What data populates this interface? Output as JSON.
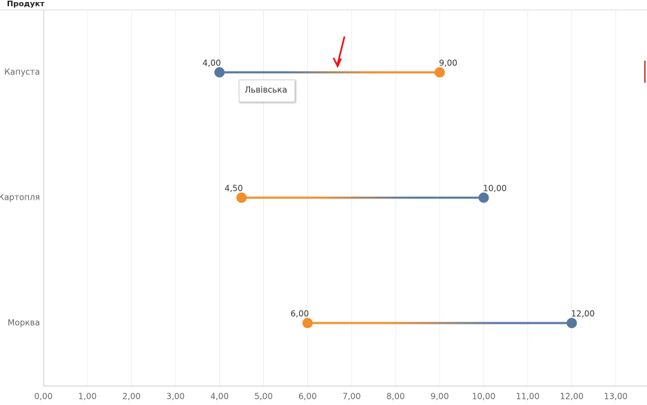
{
  "chart_data": {
    "type": "dumbbell",
    "header": "Продукт",
    "categories": [
      "Капуста",
      "Картопля",
      "Морква"
    ],
    "series": [
      {
        "color": "#5677a0",
        "values": [
          4,
          10,
          12
        ],
        "value_labels": [
          "4,00",
          "10,00",
          "12,00"
        ]
      },
      {
        "color": "#f28e2b",
        "values": [
          9,
          4.5,
          6
        ],
        "value_labels": [
          "9,00",
          "4,50",
          "6,00"
        ]
      }
    ],
    "annotation": "Львівська",
    "xlim": [
      0,
      13.7
    ],
    "xticks": [
      {
        "value": 0,
        "label": "0,00"
      },
      {
        "value": 1,
        "label": "1,00"
      },
      {
        "value": 2,
        "label": "2,00"
      },
      {
        "value": 3,
        "label": "3,00"
      },
      {
        "value": 4,
        "label": "4,00"
      },
      {
        "value": 5,
        "label": "5,00"
      },
      {
        "value": 6,
        "label": "6,00"
      },
      {
        "value": 7,
        "label": "7,00"
      },
      {
        "value": 8,
        "label": "8,00"
      },
      {
        "value": 9,
        "label": "9,00"
      },
      {
        "value": 10,
        "label": "10,00"
      },
      {
        "value": 11,
        "label": "11,00"
      },
      {
        "value": 12,
        "label": "12,00"
      },
      {
        "value": 13,
        "label": "13,00"
      }
    ],
    "grid": true
  }
}
